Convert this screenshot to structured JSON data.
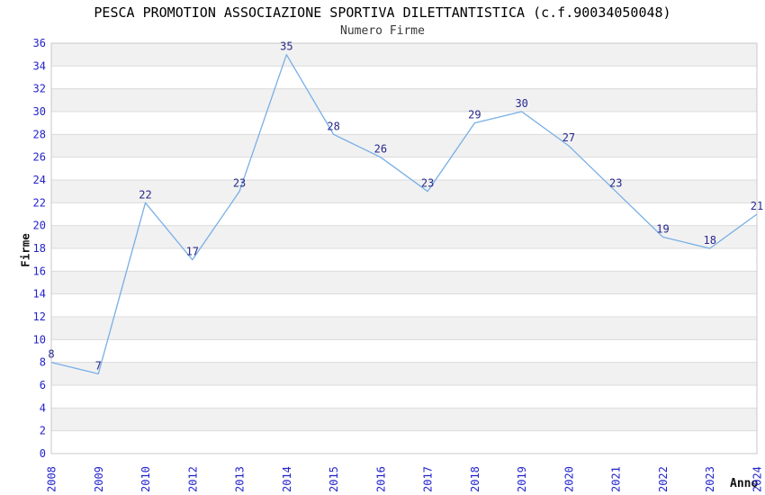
{
  "chart_data": {
    "type": "line",
    "title": "PESCA PROMOTION ASSOCIAZIONE SPORTIVA DILETTANTISTICA (c.f.90034050048)",
    "subtitle": "Numero Firme",
    "xlabel": "Anno",
    "ylabel": "Firme",
    "categories": [
      "2008",
      "2009",
      "2010",
      "2012",
      "2013",
      "2014",
      "2015",
      "2016",
      "2017",
      "2018",
      "2019",
      "2020",
      "2021",
      "2022",
      "2023",
      "2024"
    ],
    "values": [
      8,
      7,
      22,
      17,
      23,
      35,
      28,
      26,
      23,
      29,
      30,
      27,
      23,
      19,
      18,
      21
    ],
    "ylim": [
      0,
      36
    ],
    "ytick_step": 2,
    "grid": "horizontal",
    "legend_position": "none",
    "point_labels_shown": true,
    "colors": {
      "line": "#78afe6",
      "tick_label": "#2222cc",
      "point_label": "#28288c",
      "band_fill": "#f1f1f1",
      "gridline": "#dcdcdc",
      "plot_border": "#c8c8c8",
      "title_text": "#000000",
      "subtitle_text": "#383838",
      "axis_title_text": "#111111",
      "background": "#ffffff"
    }
  }
}
